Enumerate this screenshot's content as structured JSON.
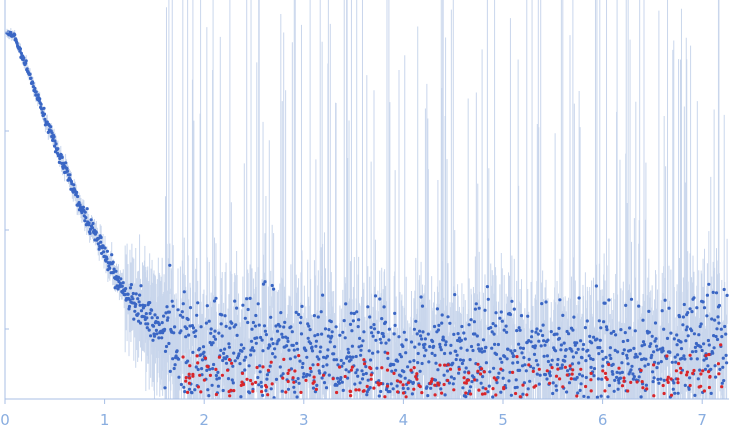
{
  "chart_data": {
    "type": "scatter",
    "title": "",
    "xlabel": "",
    "ylabel": "",
    "x_ticks": [
      "0",
      "1",
      "2",
      "3",
      "4",
      "5",
      "6",
      "7"
    ],
    "xlim": [
      0,
      7.25
    ],
    "y_scale": "log",
    "grid": false,
    "legend": "none",
    "series": [
      {
        "color": "#3a66c4",
        "marker": "dot",
        "error_bars": true,
        "error_bar_color": "#c9d6ec"
      },
      {
        "color": "#d9262b",
        "marker": "dot",
        "error_bars": false
      }
    ],
    "profile": [
      {
        "x": 0.0,
        "y_rel": 1.0
      },
      {
        "x": 0.1,
        "y_rel": 0.98
      },
      {
        "x": 0.3,
        "y_rel": 0.84
      },
      {
        "x": 0.5,
        "y_rel": 0.69
      },
      {
        "x": 0.8,
        "y_rel": 0.5
      },
      {
        "x": 1.0,
        "y_rel": 0.39
      },
      {
        "x": 1.2,
        "y_rel": 0.29
      },
      {
        "x": 1.5,
        "y_rel": 0.2
      },
      {
        "x": 1.8,
        "y_rel": 0.16
      },
      {
        "x": 2.5,
        "y_rel": 0.14
      },
      {
        "x": 4.0,
        "y_rel": 0.13
      },
      {
        "x": 6.5,
        "y_rel": 0.13
      },
      {
        "x": 7.25,
        "y_rel": 0.18
      }
    ]
  }
}
